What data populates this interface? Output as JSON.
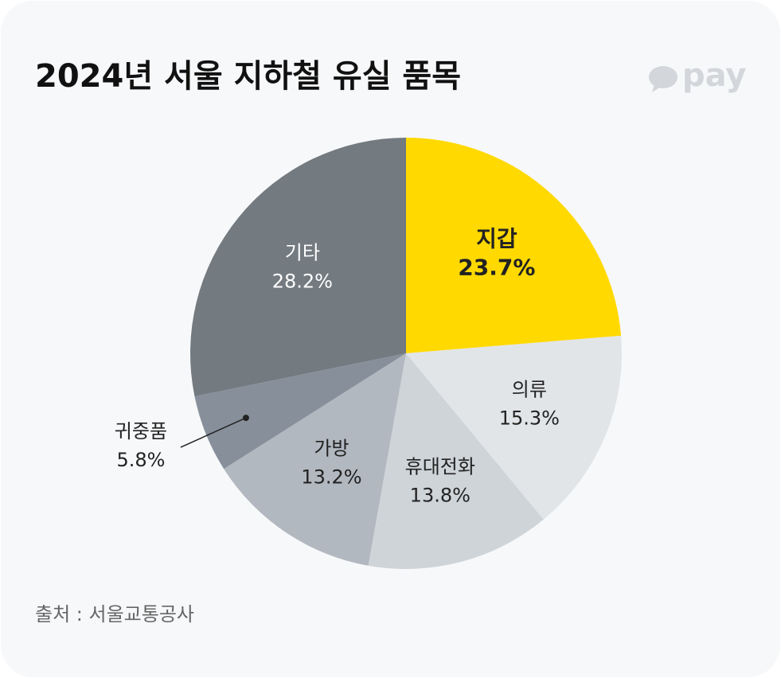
{
  "chart_data": {
    "type": "pie",
    "title": "2024년 서울 지하철 유실 품목",
    "logo": "pay",
    "source": "출처 : 서울교통공사",
    "categories": [
      "지갑",
      "의류",
      "휴대전화",
      "가방",
      "귀중품",
      "기타"
    ],
    "values": [
      23.7,
      15.3,
      13.8,
      13.2,
      5.8,
      28.2
    ],
    "value_labels": [
      "23.7%",
      "15.3%",
      "13.8%",
      "13.2%",
      "5.8%",
      "28.2%"
    ],
    "colors": [
      "#ffd900",
      "#e2e5e8",
      "#cfd4d9",
      "#b2b8c0",
      "#87909a",
      "#737a80"
    ]
  }
}
